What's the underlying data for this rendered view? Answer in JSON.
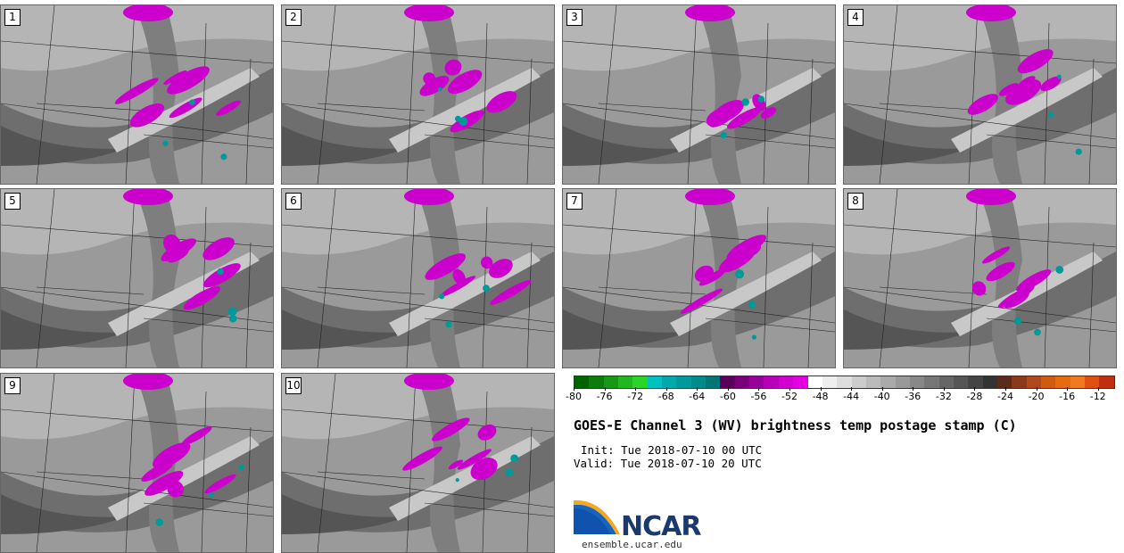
{
  "title": "GOES-E Channel 3 (WV) brightness temp postage stamp (C)",
  "init_line": "Init: Tue 2018-07-10 00 UTC",
  "valid_line": "Valid: Tue 2018-07-10 20 UTC",
  "logo_text": "NCAR",
  "logo_url": "ensemble.ucar.edu",
  "panels": [
    "1",
    "2",
    "3",
    "4",
    "5",
    "6",
    "7",
    "8",
    "9",
    "10"
  ],
  "colorbar": {
    "ticks": [
      "-80",
      "-76",
      "-72",
      "-68",
      "-64",
      "-60",
      "-56",
      "-52",
      "-48",
      "-44",
      "-40",
      "-36",
      "-32",
      "-28",
      "-24",
      "-20",
      "-16",
      "-12"
    ],
    "colors": [
      "#006400",
      "#0b7d0b",
      "#169a16",
      "#1fb81f",
      "#28d628",
      "#00c0c0",
      "#00aaaa",
      "#009a9a",
      "#008a8a",
      "#007575",
      "#5a005a",
      "#7a007a",
      "#9a009a",
      "#b800b8",
      "#d000d0",
      "#e000e0",
      "#ffffff",
      "#eeeeee",
      "#dddddd",
      "#cccccc",
      "#bbbbbb",
      "#aaaaaa",
      "#999999",
      "#888888",
      "#777777",
      "#666666",
      "#555555",
      "#444444",
      "#333333",
      "#5a2a1a",
      "#8a3a1a",
      "#b04a1a",
      "#d05a10",
      "#e86a10",
      "#f07a20",
      "#e05010",
      "#c03010"
    ]
  }
}
